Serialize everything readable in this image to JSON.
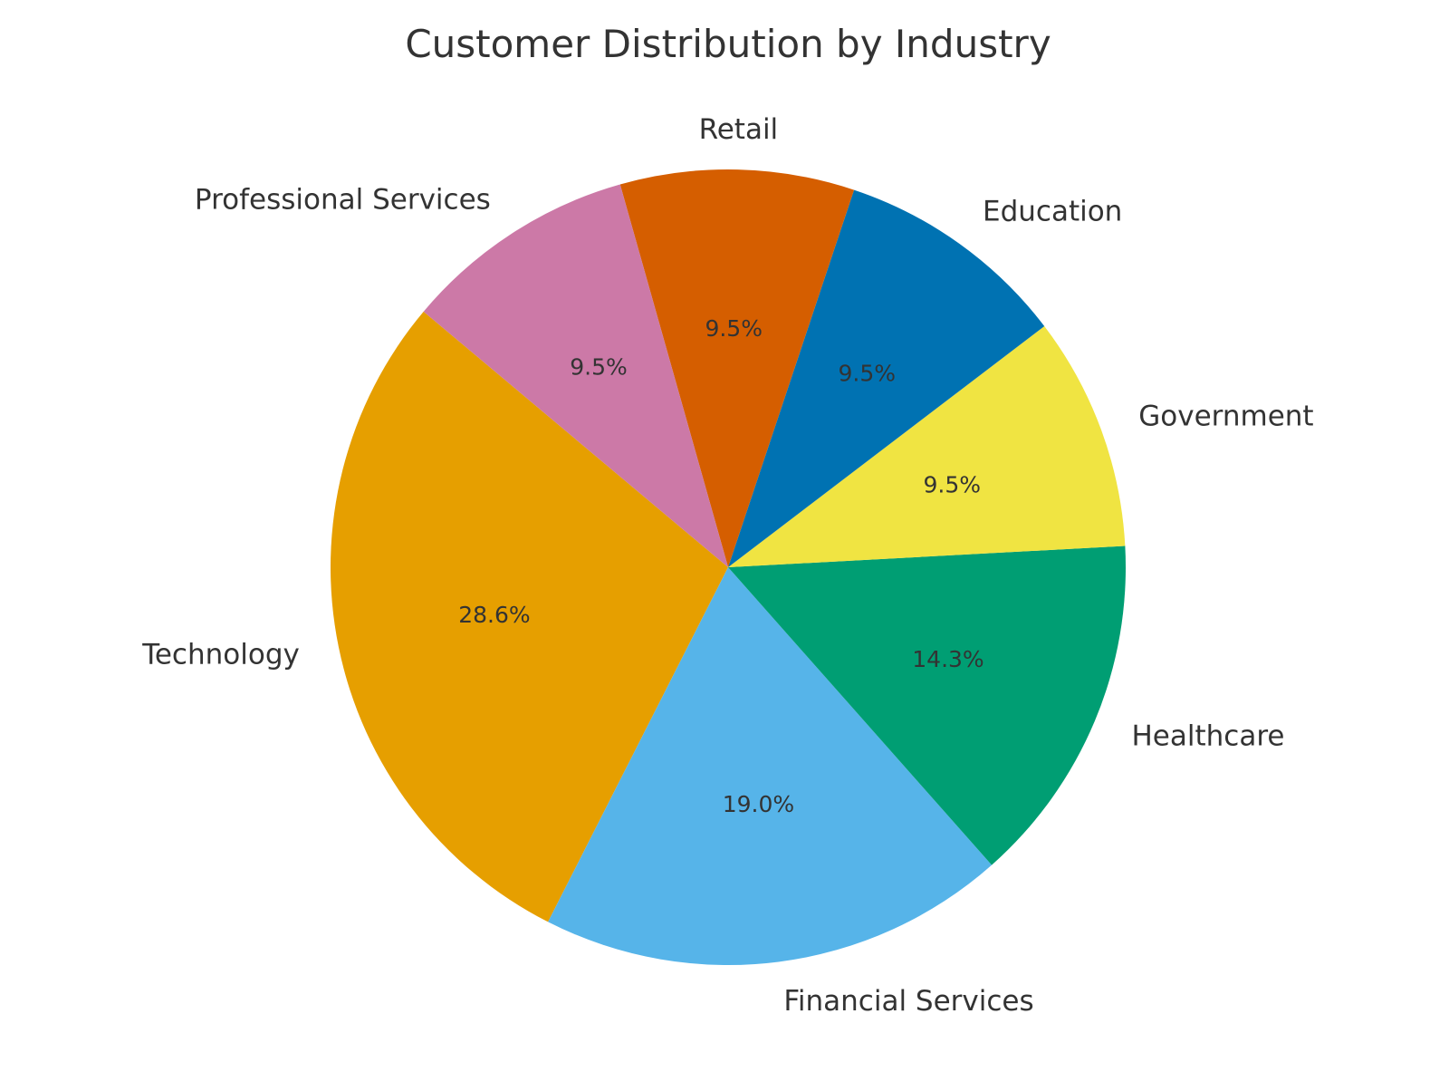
{
  "chart_data": {
    "type": "pie",
    "title": "Customer Distribution by Industry",
    "start_angle_deg": 140,
    "direction": "counterclockwise",
    "slices": [
      {
        "label": "Technology",
        "value": 28.6,
        "pct_label": "28.6%",
        "color": "#E69F00"
      },
      {
        "label": "Financial Services",
        "value": 19.0,
        "pct_label": "19.0%",
        "color": "#56B4E9"
      },
      {
        "label": "Healthcare",
        "value": 14.3,
        "pct_label": "14.3%",
        "color": "#009E73"
      },
      {
        "label": "Government",
        "value": 9.5,
        "pct_label": "9.5%",
        "color": "#F0E442"
      },
      {
        "label": "Education",
        "value": 9.5,
        "pct_label": "9.5%",
        "color": "#0072B2"
      },
      {
        "label": "Retail",
        "value": 9.5,
        "pct_label": "9.5%",
        "color": "#D55E00"
      },
      {
        "label": "Professional Services",
        "value": 9.5,
        "pct_label": "9.5%",
        "color": "#CC79A7"
      }
    ]
  }
}
